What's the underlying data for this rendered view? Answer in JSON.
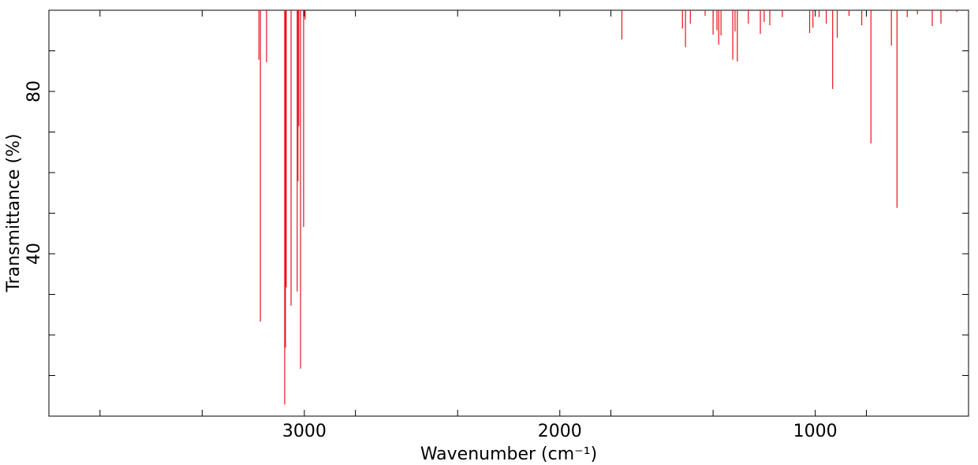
{
  "chart_data": {
    "type": "stick",
    "xlabel": "Wavenumber (cm⁻¹)",
    "ylabel": "Transmittance (%)",
    "color": "#e8141c",
    "xlim": [
      4000,
      400
    ],
    "xticks": [
      3000,
      2000,
      1000
    ],
    "xticks_minor": [
      3800,
      3400,
      2800,
      2400,
      1800,
      1400,
      800
    ],
    "ylim": [
      0,
      100
    ],
    "yticks": [
      40,
      80
    ],
    "yticks_minor": [
      10,
      20,
      30,
      50,
      60,
      70,
      90
    ],
    "x": [
      3178,
      3172,
      3148,
      3077,
      3074,
      3071,
      3052,
      3028,
      3025,
      3022,
      3015,
      3003,
      2997,
      1757,
      1520,
      1508,
      1489,
      1431,
      1400,
      1385,
      1378,
      1369,
      1323,
      1314,
      1305,
      1262,
      1215,
      1200,
      1178,
      1129,
      1022,
      1009,
      985,
      957,
      932,
      914,
      868,
      818,
      782,
      702,
      680,
      640,
      600,
      542,
      508,
      446
    ],
    "values": [
      87.8,
      23.3,
      87.2,
      2.9,
      16.9,
      31.7,
      27.2,
      30.7,
      57.9,
      71.5,
      11.7,
      46.6,
      97.7,
      92.8,
      95.5,
      90.9,
      96.7,
      98.6,
      94.0,
      95.1,
      91.5,
      93.8,
      87.8,
      94.8,
      87.4,
      96.7,
      94.2,
      97.1,
      96.3,
      98.3,
      94.4,
      95.7,
      98.3,
      96.7,
      80.6,
      93.2,
      98.6,
      96.3,
      67.2,
      91.3,
      51.3,
      98.3,
      99.0,
      96.1,
      96.7,
      99.6
    ]
  }
}
